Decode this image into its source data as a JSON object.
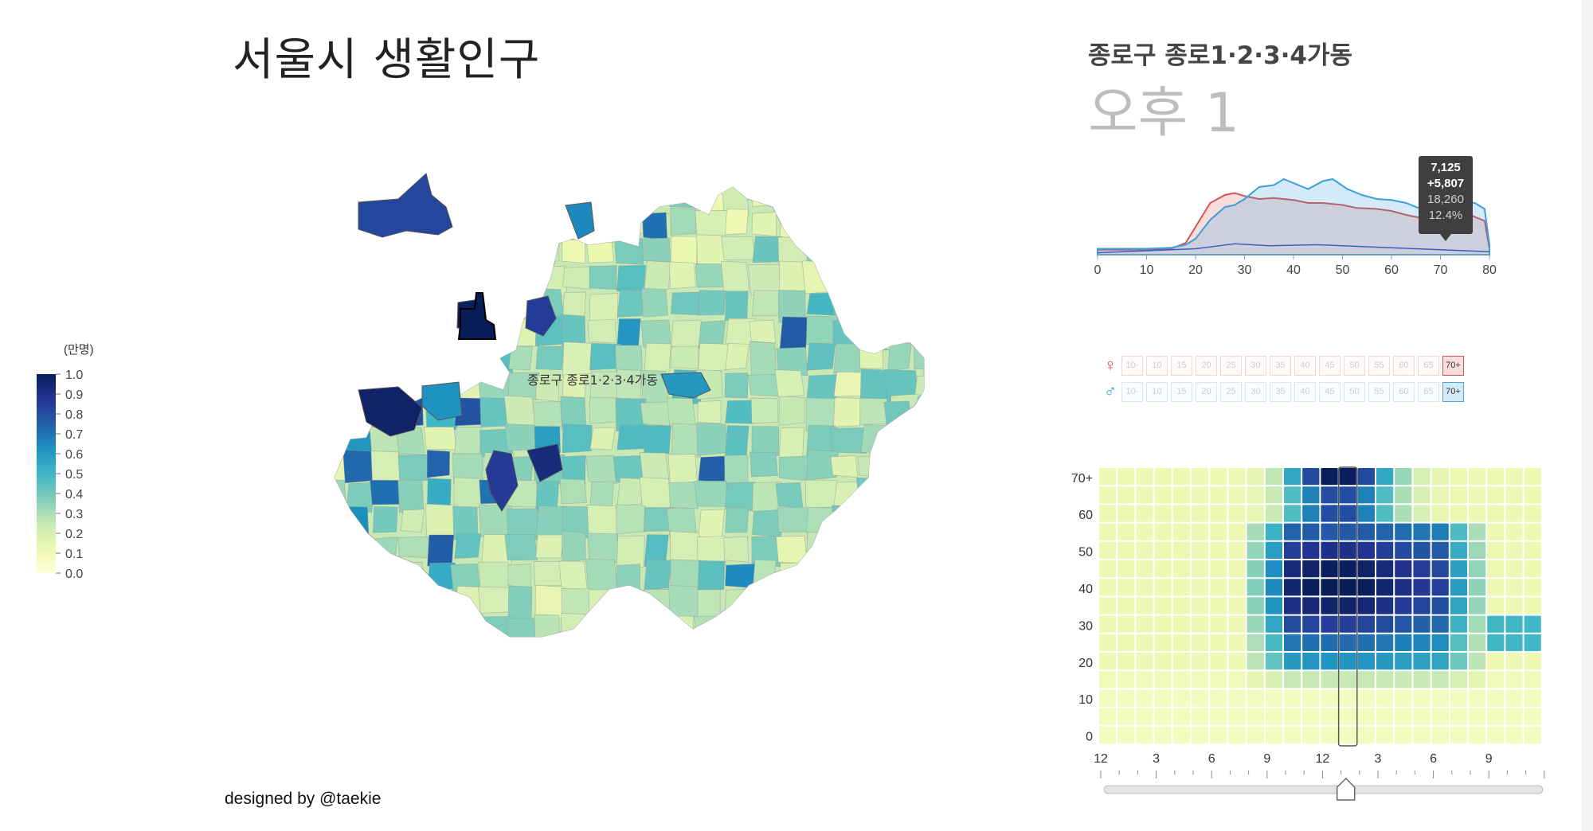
{
  "title": "서울시 생활인구",
  "credit": "designed by @taekie",
  "legend": {
    "unit": "(만명)",
    "ticks": [
      "1.0",
      "0.9",
      "0.8",
      "0.7",
      "0.6",
      "0.5",
      "0.4",
      "0.3",
      "0.2",
      "0.1",
      "0.0"
    ]
  },
  "map": {
    "selected_label": "종로구 종로1·2·3·4가동"
  },
  "panel": {
    "district": "종로구 종로1·2·3·4가동",
    "time": "오후 1"
  },
  "tooltip": {
    "female": "7,125",
    "male": "+5,807",
    "total": "18,260",
    "percent": "12.4%"
  },
  "age_buttons": [
    "10-",
    "10",
    "15",
    "20",
    "25",
    "30",
    "35",
    "40",
    "45",
    "50",
    "55",
    "60",
    "65",
    "70+"
  ],
  "age_selected": "70+",
  "gender_icons": {
    "female": "female-icon",
    "male": "male-icon"
  },
  "colors": {
    "female": "#d9534f",
    "male": "#3a9fde",
    "overlap": "#c9cfe4"
  },
  "chart_data": [
    {
      "type": "area",
      "x_ticks": [
        "0",
        "10",
        "20",
        "30",
        "40",
        "50",
        "60",
        "70",
        "80"
      ],
      "xlim": [
        0,
        80
      ],
      "series": [
        {
          "color": "#d9534f",
          "x": [
            0,
            10,
            15,
            18,
            20,
            23,
            26,
            28,
            30,
            33,
            36,
            40,
            43,
            46,
            50,
            53,
            57,
            60,
            63,
            66,
            68,
            70,
            73,
            76,
            79,
            80
          ],
          "values": [
            5,
            5,
            6,
            12,
            28,
            52,
            60,
            62,
            59,
            56,
            57,
            55,
            52,
            52,
            50,
            47,
            46,
            44,
            40,
            37,
            35,
            38,
            40,
            40,
            34,
            6
          ]
        },
        {
          "color": "#3a9fde",
          "x": [
            0,
            10,
            15,
            18,
            20,
            23,
            26,
            28,
            30,
            33,
            36,
            38,
            41,
            43,
            46,
            48,
            51,
            54,
            57,
            60,
            63,
            66,
            68,
            70,
            72,
            74,
            77,
            79,
            80
          ],
          "values": [
            6,
            6,
            7,
            10,
            16,
            35,
            48,
            50,
            56,
            68,
            70,
            76,
            70,
            66,
            74,
            76,
            66,
            60,
            56,
            55,
            52,
            46,
            40,
            42,
            50,
            54,
            52,
            46,
            10
          ]
        }
      ]
    },
    {
      "type": "heatmap",
      "x_ticks": [
        "12",
        "3",
        "6",
        "9",
        "12",
        "3",
        "6",
        "9"
      ],
      "y_ticks": [
        "70+",
        "60",
        "50",
        "40",
        "30",
        "20",
        "10",
        "0"
      ],
      "rows": 15,
      "cols": 24,
      "selected_col": 13,
      "slider_value_hour": 13
    }
  ]
}
